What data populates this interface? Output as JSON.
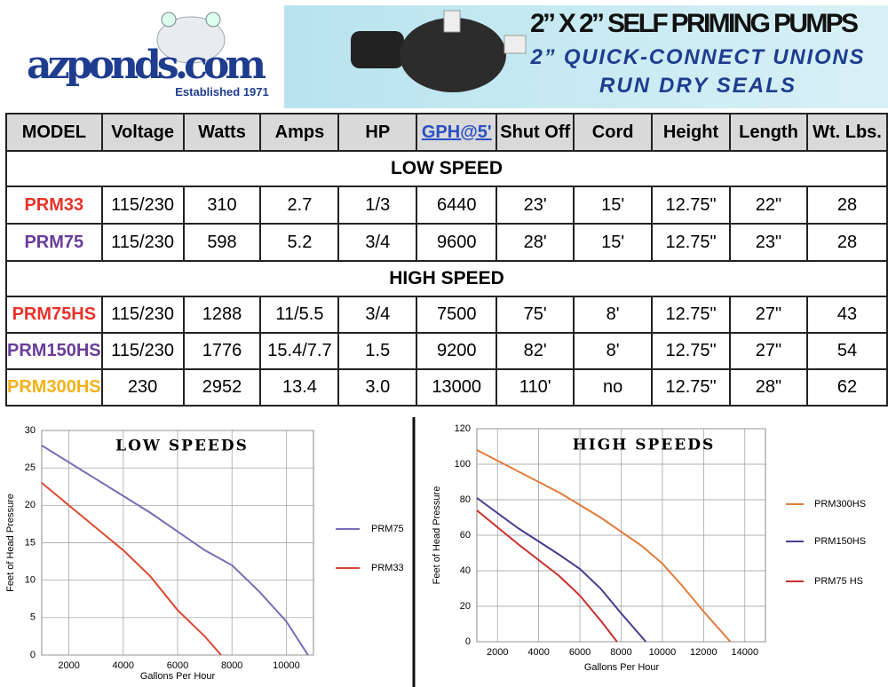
{
  "header": {
    "logo": "azponds.com",
    "established": "Established 1971",
    "title_lines": [
      "2” X 2” SELF PRIMING PUMPS",
      "2” QUICK-CONNECT UNIONS",
      "RUN DRY SEALS"
    ]
  },
  "table": {
    "columns": [
      "MODEL",
      "Voltage",
      "Watts",
      "Amps",
      "HP",
      "GPH@5'",
      "Shut Off",
      "Cord",
      "Height",
      "Length",
      "Wt. Lbs."
    ],
    "sections": [
      {
        "title": "LOW SPEED",
        "rows": [
          {
            "color": "#e8322a",
            "cells": [
              "PRM33",
              "115/230",
              "310",
              "2.7",
              "1/3",
              "6440",
              "23'",
              "15'",
              "12.75\"",
              "22\"",
              "28"
            ]
          },
          {
            "color": "#6a3d9a",
            "cells": [
              "PRM75",
              "115/230",
              "598",
              "5.2",
              "3/4",
              "9600",
              "28'",
              "15'",
              "12.75\"",
              "23\"",
              "28"
            ]
          }
        ]
      },
      {
        "title": "HIGH SPEED",
        "rows": [
          {
            "color": "#e8322a",
            "cells": [
              "PRM75HS",
              "115/230",
              "1288",
              "11/5.5",
              "3/4",
              "7500",
              "75'",
              "8'",
              "12.75\"",
              "27\"",
              "43"
            ]
          },
          {
            "color": "#6a3d9a",
            "cells": [
              "PRM150HS",
              "115/230",
              "1776",
              "15.4/7.7",
              "1.5",
              "9200",
              "82'",
              "8'",
              "12.75\"",
              "27\"",
              "54"
            ]
          },
          {
            "color": "#f2b21b",
            "cells": [
              "PRM300HS",
              "230",
              "2952",
              "13.4",
              "3.0",
              "13000",
              "110'",
              "no",
              "12.75\"",
              "28\"",
              "62"
            ]
          }
        ]
      }
    ]
  },
  "chart_data": [
    {
      "type": "line",
      "title": "LOW SPEEDS",
      "x_label": "Gallons Per Hour",
      "y_label": "Feet of Head Pressure",
      "xlim": [
        1000,
        11000
      ],
      "xticks": [
        2000,
        4000,
        6000,
        8000,
        10000
      ],
      "ylim": [
        0,
        30
      ],
      "yticks": [
        0,
        5,
        10,
        15,
        20,
        25,
        30
      ],
      "grid": true,
      "series": [
        {
          "name": "PRM75",
          "color": "#7c6bb5",
          "x": [
            1000,
            3000,
            5000,
            6000,
            7000,
            8000,
            9000,
            10000,
            10800
          ],
          "values": [
            28,
            23.5,
            19,
            16.5,
            14,
            12,
            8.5,
            4.5,
            0
          ]
        },
        {
          "name": "PRM33",
          "color": "#d94a30",
          "x": [
            1000,
            2000,
            3000,
            4000,
            5000,
            6000,
            7000,
            7600
          ],
          "values": [
            23,
            20,
            17,
            14,
            10.5,
            6,
            2.5,
            0
          ]
        }
      ]
    },
    {
      "type": "line",
      "title": "HIGH SPEEDS",
      "x_label": "Gallons Per Hour",
      "y_label": "Feet of Head Pressure",
      "xlim": [
        1000,
        15000
      ],
      "xticks": [
        2000,
        4000,
        6000,
        8000,
        10000,
        12000,
        14000
      ],
      "ylim": [
        0,
        120
      ],
      "yticks": [
        0,
        20,
        40,
        60,
        80,
        100,
        120
      ],
      "grid": true,
      "series": [
        {
          "name": "PRM300HS",
          "color": "#e07b3c",
          "x": [
            1000,
            3000,
            5000,
            7000,
            9000,
            10000,
            11000,
            12000,
            13300
          ],
          "values": [
            108,
            96,
            84,
            70,
            54,
            44,
            31,
            17,
            0
          ]
        },
        {
          "name": "PRM150HS",
          "color": "#4a3a8e",
          "x": [
            1000,
            3000,
            5000,
            6000,
            7000,
            8000,
            9200
          ],
          "values": [
            81,
            64,
            49,
            41,
            30,
            16,
            0
          ]
        },
        {
          "name": "PRM75  HS",
          "color": "#c8302b",
          "x": [
            1000,
            3000,
            5000,
            6000,
            7000,
            7800
          ],
          "values": [
            74,
            55,
            37,
            26,
            12,
            0
          ]
        }
      ]
    }
  ]
}
